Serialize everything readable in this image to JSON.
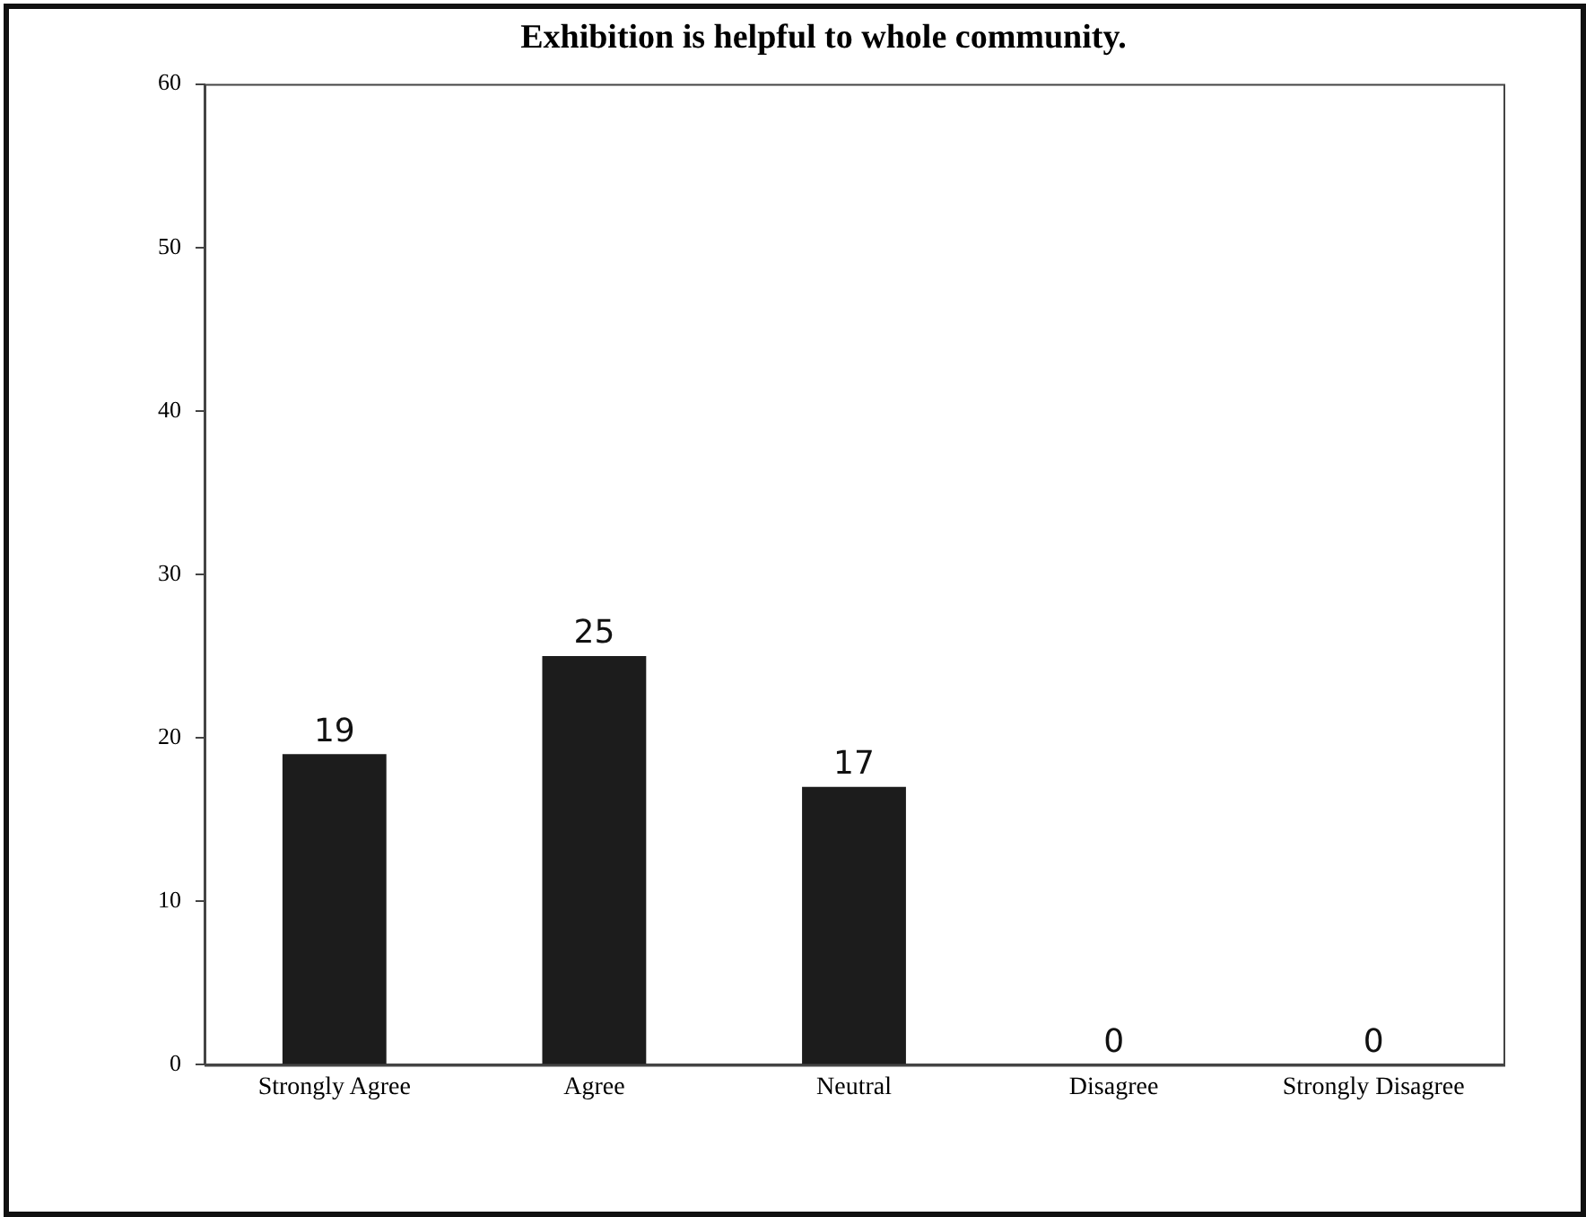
{
  "chart_data": {
    "type": "bar",
    "title": "Exhibition is helpful to whole community.",
    "categories": [
      "Strongly Agree",
      "Agree",
      "Neutral",
      "Disagree",
      "Strongly Disagree"
    ],
    "values": [
      19,
      25,
      17,
      0,
      0
    ],
    "color": "#1c1c1c",
    "ylim": [
      0,
      60
    ],
    "yticks": [
      0,
      10,
      20,
      30,
      40,
      50,
      60
    ],
    "grid": false,
    "legend": false,
    "data_labels": true
  }
}
